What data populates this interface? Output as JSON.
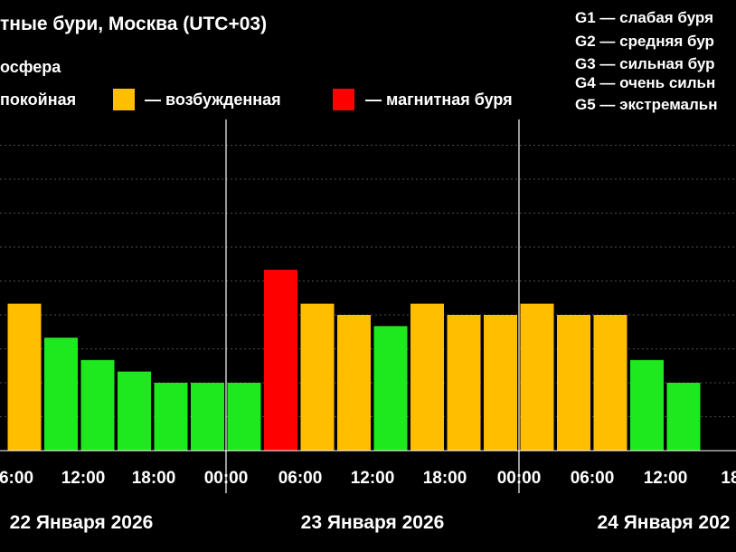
{
  "header": {
    "title": "тные бури, Москва (UTC+03)",
    "subtitle": "осфера"
  },
  "legend": {
    "calm": "покойная",
    "excited": "— возбужденная",
    "storm": "— магнитная буря"
  },
  "g_scale": [
    {
      "level": "G1",
      "text": "G1 — слабая буря"
    },
    {
      "level": "G2",
      "text": "G2 — средняя бур"
    },
    {
      "level": "G3",
      "text": "G3 — сильная бур"
    },
    {
      "level": "G4",
      "text": "G4 — очень сильн"
    },
    {
      "level": "G5",
      "text": "G5 — экстремальн"
    }
  ],
  "colors": {
    "background": "#000000",
    "calm": "#1ee81e",
    "excited": "#ffbf00",
    "storm": "#ff0000",
    "grid": "#ffffff"
  },
  "chart_data": {
    "type": "bar",
    "title": "",
    "xlabel": "",
    "ylabel": "",
    "ylim": [
      0,
      9
    ],
    "grid": true,
    "legend_placement": "top",
    "x_ticks": [
      "6:00",
      "12:00",
      "18:00",
      "00:00",
      "06:00",
      "12:00",
      "18:00",
      "00:00",
      "06:00",
      "12:00",
      "18"
    ],
    "day_labels": [
      "22 Января 2026",
      "23 Января 2026",
      "24 Января 202"
    ],
    "bars": [
      {
        "kp": 4.33,
        "status": "excited"
      },
      {
        "kp": 3.33,
        "status": "calm"
      },
      {
        "kp": 2.67,
        "status": "calm"
      },
      {
        "kp": 2.33,
        "status": "calm"
      },
      {
        "kp": 2.0,
        "status": "calm"
      },
      {
        "kp": 2.0,
        "status": "calm"
      },
      {
        "kp": 2.0,
        "status": "calm"
      },
      {
        "kp": 5.33,
        "status": "storm"
      },
      {
        "kp": 4.33,
        "status": "excited"
      },
      {
        "kp": 4.0,
        "status": "excited"
      },
      {
        "kp": 3.67,
        "status": "calm"
      },
      {
        "kp": 4.33,
        "status": "excited"
      },
      {
        "kp": 4.0,
        "status": "excited"
      },
      {
        "kp": 4.0,
        "status": "excited"
      },
      {
        "kp": 4.33,
        "status": "excited"
      },
      {
        "kp": 4.0,
        "status": "excited"
      },
      {
        "kp": 4.0,
        "status": "excited"
      },
      {
        "kp": 2.67,
        "status": "calm"
      },
      {
        "kp": 2.0,
        "status": "calm"
      }
    ]
  }
}
